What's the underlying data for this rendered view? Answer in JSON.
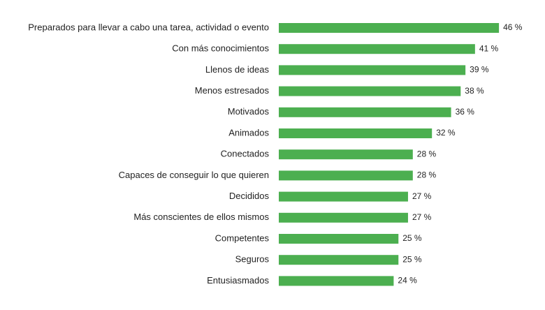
{
  "chart_data": {
    "type": "bar",
    "orientation": "horizontal",
    "title": "",
    "xlabel": "",
    "ylabel": "",
    "unit_suffix": " %",
    "bar_color": "#4caf50",
    "grid": false,
    "legend": "none",
    "xlim": [
      0,
      50
    ],
    "categories": [
      "Preparados para llevar a cabo una tarea, actividad o evento",
      "Con más conocimientos",
      "Llenos de ideas",
      "Menos estresados",
      "Motivados",
      "Animados",
      "Conectados",
      "Capaces de conseguir lo que quieren",
      "Decididos",
      "Más conscientes de ellos mismos",
      "Competentes",
      "Seguros",
      "Entusiasmados"
    ],
    "values": [
      46,
      41,
      39,
      38,
      36,
      32,
      28,
      28,
      27,
      27,
      25,
      25,
      24
    ],
    "value_labels": [
      "46 %",
      "41 %",
      "39 %",
      "38 %",
      "36 %",
      "32 %",
      "28 %",
      "28 %",
      "27 %",
      "27 %",
      "25 %",
      "25 %",
      "24 %"
    ]
  }
}
